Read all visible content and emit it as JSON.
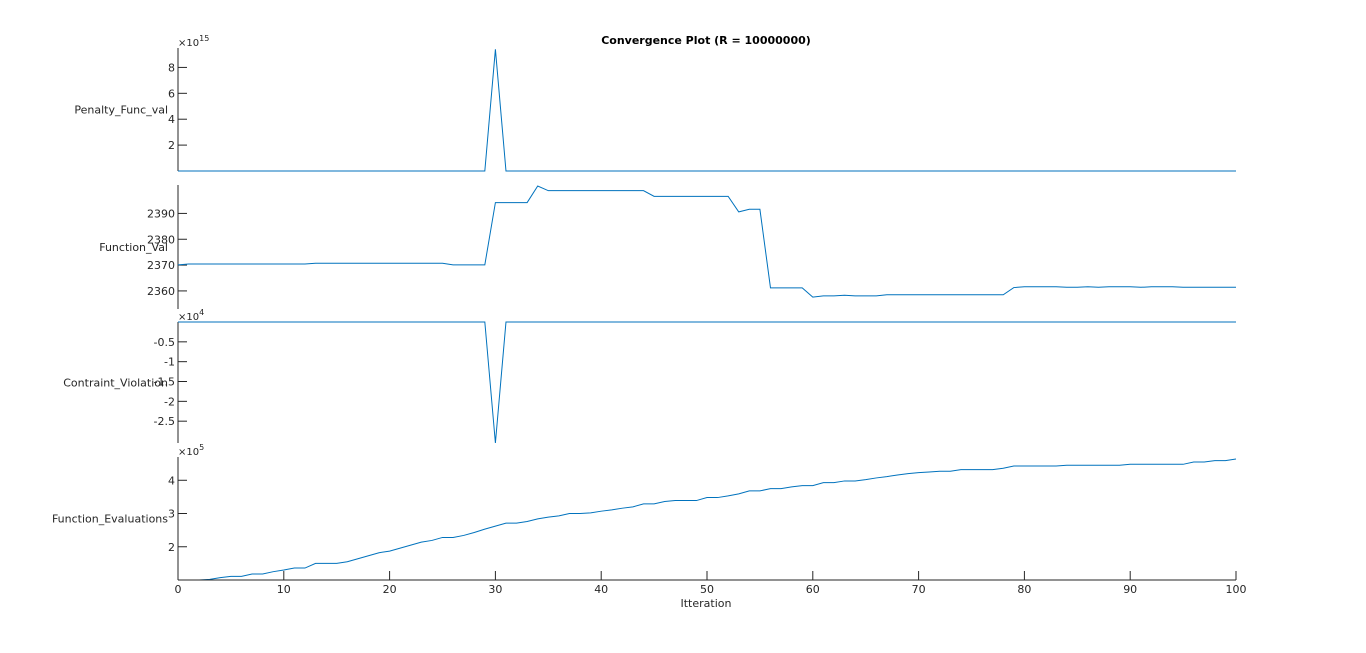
{
  "chart_data": {
    "type": "line",
    "title": "Convergence Plot (R = 10000000)",
    "xlabel": "Itteration",
    "x": [
      0,
      1,
      2,
      3,
      4,
      5,
      6,
      7,
      8,
      9,
      10,
      11,
      12,
      13,
      14,
      15,
      16,
      17,
      18,
      19,
      20,
      21,
      22,
      23,
      24,
      25,
      26,
      27,
      28,
      29,
      30,
      31,
      32,
      33,
      34,
      35,
      36,
      37,
      38,
      39,
      40,
      41,
      42,
      43,
      44,
      45,
      46,
      47,
      48,
      49,
      50,
      51,
      52,
      53,
      54,
      55,
      56,
      57,
      58,
      59,
      60,
      61,
      62,
      63,
      64,
      65,
      66,
      67,
      68,
      69,
      70,
      71,
      72,
      73,
      74,
      75,
      76,
      77,
      78,
      79,
      80,
      81,
      82,
      83,
      84,
      85,
      86,
      87,
      88,
      89,
      90,
      91,
      92,
      93,
      94,
      95,
      96,
      97,
      98,
      99,
      100
    ],
    "xlim": [
      0,
      100
    ],
    "xticks": [
      0,
      10,
      20,
      30,
      40,
      50,
      60,
      70,
      80,
      90,
      100
    ],
    "xtick_labels": [
      "0",
      "10",
      "20",
      "30",
      "40",
      "50",
      "60",
      "70",
      "80",
      "90",
      "100"
    ],
    "grid": false,
    "panels": [
      {
        "ylabel": "Penalty_Func_val",
        "exponent_base": "×10",
        "exponent_power": "15",
        "ylim": [
          0,
          9.5
        ],
        "yticks": [
          2,
          4,
          6,
          8
        ],
        "ytick_labels": [
          "2",
          "4",
          "6",
          "8"
        ],
        "series": [
          {
            "color": "#0072bd",
            "values": [
              0,
              0,
              0,
              0,
              0,
              0,
              0,
              0,
              0,
              0,
              0,
              0,
              0,
              0,
              0,
              0,
              0,
              0,
              0,
              0,
              0,
              0,
              0,
              0,
              0,
              0,
              0,
              0,
              0,
              0,
              9.4,
              0,
              0,
              0,
              0,
              0,
              0,
              0,
              0,
              0,
              0,
              0,
              0,
              0,
              0,
              0,
              0,
              0,
              0,
              0,
              0,
              0,
              0,
              0,
              0,
              0,
              0,
              0,
              0,
              0,
              0,
              0,
              0,
              0,
              0,
              0,
              0,
              0,
              0,
              0,
              0,
              0,
              0,
              0,
              0,
              0,
              0,
              0,
              0,
              0,
              0,
              0,
              0,
              0,
              0,
              0,
              0,
              0,
              0,
              0,
              0,
              0,
              0,
              0,
              0,
              0,
              0,
              0,
              0,
              0,
              0
            ]
          }
        ]
      },
      {
        "ylabel": "Function_Val",
        "ylim": [
          2353,
          2401
        ],
        "yticks": [
          2360,
          2370,
          2380,
          2390
        ],
        "ytick_labels": [
          "2360",
          "2370",
          "2380",
          "2390"
        ],
        "series": [
          {
            "color": "#0072bd",
            "values": [
              2370.1,
              2370.4,
              2370.4,
              2370.4,
              2370.4,
              2370.4,
              2370.4,
              2370.4,
              2370.4,
              2370.4,
              2370.4,
              2370.4,
              2370.4,
              2370.7,
              2370.7,
              2370.7,
              2370.7,
              2370.7,
              2370.7,
              2370.7,
              2370.7,
              2370.7,
              2370.7,
              2370.7,
              2370.7,
              2370.7,
              2370.1,
              2370.1,
              2370.1,
              2370.1,
              2394.2,
              2394.2,
              2394.2,
              2394.2,
              2400.6,
              2398.8,
              2398.8,
              2398.8,
              2398.8,
              2398.8,
              2398.8,
              2398.8,
              2398.8,
              2398.8,
              2398.8,
              2396.6,
              2396.6,
              2396.6,
              2396.6,
              2396.6,
              2396.6,
              2396.6,
              2396.6,
              2390.6,
              2391.6,
              2391.6,
              2361.2,
              2361.2,
              2361.2,
              2361.2,
              2357.6,
              2358.1,
              2358.1,
              2358.3,
              2358.1,
              2358.1,
              2358.1,
              2358.5,
              2358.5,
              2358.5,
              2358.5,
              2358.5,
              2358.5,
              2358.5,
              2358.5,
              2358.5,
              2358.5,
              2358.5,
              2358.5,
              2361.3,
              2361.6,
              2361.6,
              2361.6,
              2361.6,
              2361.4,
              2361.4,
              2361.6,
              2361.4,
              2361.6,
              2361.6,
              2361.6,
              2361.4,
              2361.6,
              2361.6,
              2361.6,
              2361.4,
              2361.4,
              2361.4,
              2361.4,
              2361.4,
              2361.4
            ]
          }
        ]
      },
      {
        "ylabel": "Contraint_Violation",
        "exponent_base": "×10",
        "exponent_power": "4",
        "ylim": [
          -3.05,
          0
        ],
        "yticks": [
          -2.5,
          -2,
          -1.5,
          -1,
          -0.5
        ],
        "ytick_labels": [
          "-2.5",
          "-2",
          "-1.5",
          "-1",
          "-0.5"
        ],
        "series": [
          {
            "color": "#0072bd",
            "values": [
              0,
              0,
              0,
              0,
              0,
              0,
              0,
              0,
              0,
              0,
              0,
              0,
              0,
              0,
              0,
              0,
              0,
              0,
              0,
              0,
              0,
              0,
              0,
              0,
              0,
              0,
              0,
              0,
              0,
              0,
              -3.05,
              0,
              0,
              0,
              0,
              0,
              0,
              0,
              0,
              0,
              0,
              0,
              0,
              0,
              0,
              0,
              0,
              0,
              0,
              0,
              0,
              0,
              0,
              0,
              0,
              0,
              0,
              0,
              0,
              0,
              0,
              0,
              0,
              0,
              0,
              0,
              0,
              0,
              0,
              0,
              0,
              0,
              0,
              0,
              0,
              0,
              0,
              0,
              0,
              0,
              0,
              0,
              0,
              0,
              0,
              0,
              0,
              0,
              0,
              0,
              0,
              0,
              0,
              0,
              0,
              0,
              0,
              0,
              0,
              0,
              0
            ]
          }
        ]
      },
      {
        "ylabel": "Function_Evaluations",
        "exponent_base": "×10",
        "exponent_power": "5",
        "ylim": [
          1.0,
          4.7
        ],
        "yticks": [
          2,
          3,
          4
        ],
        "ytick_labels": [
          "2",
          "3",
          "4"
        ],
        "series": [
          {
            "color": "#0072bd",
            "values": [
              1.0,
              1.0,
              1.0,
              1.02,
              1.07,
              1.11,
              1.11,
              1.18,
              1.18,
              1.25,
              1.3,
              1.36,
              1.36,
              1.5,
              1.5,
              1.5,
              1.55,
              1.64,
              1.73,
              1.82,
              1.87,
              1.96,
              2.05,
              2.14,
              2.19,
              2.28,
              2.28,
              2.34,
              2.43,
              2.53,
              2.62,
              2.71,
              2.71,
              2.76,
              2.84,
              2.89,
              2.93,
              3.0,
              3.0,
              3.02,
              3.07,
              3.11,
              3.16,
              3.2,
              3.29,
              3.29,
              3.36,
              3.39,
              3.39,
              3.39,
              3.48,
              3.48,
              3.53,
              3.59,
              3.68,
              3.68,
              3.75,
              3.75,
              3.8,
              3.84,
              3.84,
              3.93,
              3.93,
              3.98,
              3.98,
              4.02,
              4.07,
              4.11,
              4.16,
              4.2,
              4.23,
              4.25,
              4.27,
              4.27,
              4.32,
              4.32,
              4.32,
              4.32,
              4.36,
              4.43,
              4.43,
              4.43,
              4.43,
              4.43,
              4.45,
              4.45,
              4.45,
              4.45,
              4.45,
              4.45,
              4.48,
              4.48,
              4.48,
              4.48,
              4.48,
              4.48,
              4.55,
              4.55,
              4.59,
              4.59,
              4.64
            ]
          }
        ]
      }
    ]
  }
}
